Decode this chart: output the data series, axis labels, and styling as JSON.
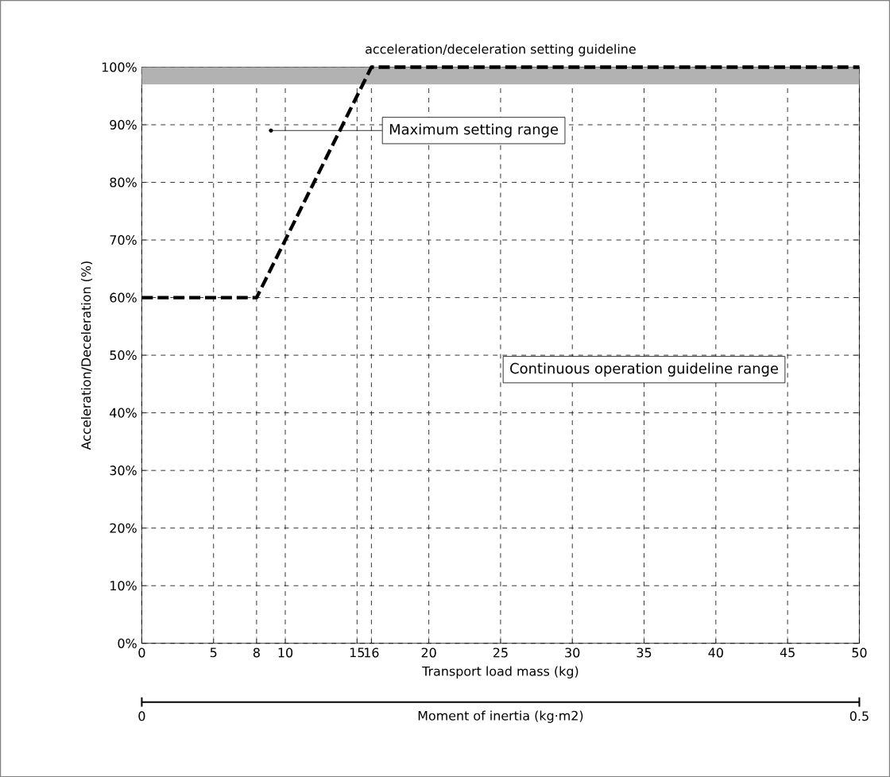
{
  "chart_data": {
    "type": "line",
    "title": "acceleration/deceleration setting guideline",
    "xlabel": "Transport load mass (kg)",
    "ylabel": "Acceleration/Deceleration (%)",
    "x2label": "Moment of inertia (kg·m2)",
    "x2lim": [
      0,
      0.5
    ],
    "x2ticks": [
      0,
      0.5
    ],
    "x": [
      0,
      8,
      16,
      50
    ],
    "series": [
      {
        "color": "#000000",
        "values": [
          60,
          60,
          100,
          100
        ]
      }
    ],
    "xlim": [
      0,
      50
    ],
    "xticks": [
      0,
      5,
      8,
      10,
      15,
      16,
      20,
      25,
      30,
      35,
      40,
      45,
      50
    ],
    "ylim": [
      0,
      100
    ],
    "yticks": [
      {
        "value": 0,
        "label": "0%"
      },
      {
        "value": 10,
        "label": "10%"
      },
      {
        "value": 20,
        "label": "20%"
      },
      {
        "value": 30,
        "label": "30%"
      },
      {
        "value": 40,
        "label": "40%"
      },
      {
        "value": 50,
        "label": "50%"
      },
      {
        "value": 60,
        "label": "60%"
      },
      {
        "value": 70,
        "label": "70%"
      },
      {
        "value": 80,
        "label": "80%"
      },
      {
        "value": 90,
        "label": "90%"
      },
      {
        "value": 100,
        "label": "100%"
      }
    ],
    "bands": [
      {
        "axis": "y",
        "from": 97,
        "to": 100,
        "color": "#b2b2b2"
      }
    ],
    "annotations": [
      {
        "text": "Maximum setting range",
        "x": 9,
        "y": 89
      },
      "Continuous operation guideline range"
    ],
    "grid": true,
    "marker": "none",
    "line_style": "dashed"
  }
}
